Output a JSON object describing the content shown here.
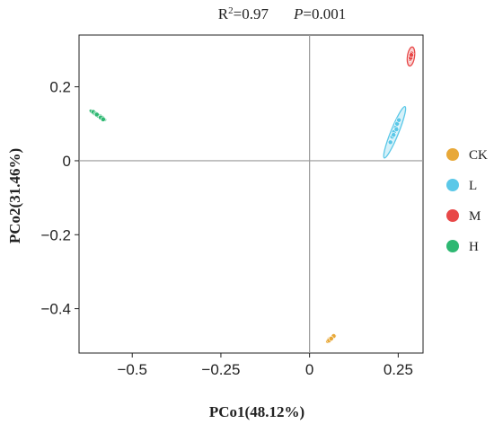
{
  "chart_data": {
    "type": "scatter",
    "stats": {
      "r2_label": "R",
      "r2_exp": "2",
      "r2_value": "=0.97",
      "p_label": "P",
      "p_value": "=0.001"
    },
    "xlabel": "PCo1(48.12%)",
    "ylabel": "PCo2(31.46%)",
    "xlim": [
      -0.65,
      0.32
    ],
    "ylim": [
      -0.52,
      0.34
    ],
    "xticks": [
      -0.5,
      -0.25,
      0,
      0.25
    ],
    "xtick_labels": [
      "−0.5",
      "−0.25",
      "0",
      "0.25"
    ],
    "yticks": [
      0.2,
      0,
      -0.2,
      -0.4
    ],
    "ytick_labels": [
      "0.2",
      "0",
      "−0.2",
      "−0.4"
    ],
    "reference_lines": {
      "x": 0,
      "y": 0
    },
    "grid": false,
    "legend_position": "right",
    "series": [
      {
        "name": "CK",
        "color": "#E8A838",
        "points": [
          [
            0.052,
            -0.488
          ],
          [
            0.058,
            -0.484
          ],
          [
            0.063,
            -0.479
          ],
          [
            0.068,
            -0.474
          ],
          [
            0.055,
            -0.486
          ],
          [
            0.061,
            -0.481
          ]
        ],
        "ellipse": {
          "cx": 0.06,
          "cy": -0.481,
          "rx": 0.016,
          "ry": 0.005,
          "angle_deg": 35
        }
      },
      {
        "name": "L",
        "color": "#5BC8E8",
        "points": [
          [
            0.228,
            0.05
          ],
          [
            0.233,
            0.065
          ],
          [
            0.238,
            0.078
          ],
          [
            0.243,
            0.09
          ],
          [
            0.247,
            0.1
          ],
          [
            0.252,
            0.11
          ],
          [
            0.237,
            0.07
          ],
          [
            0.245,
            0.085
          ]
        ],
        "ellipse": {
          "cx": 0.24,
          "cy": 0.077,
          "rx": 0.078,
          "ry": 0.011,
          "angle_deg": 68
        }
      },
      {
        "name": "M",
        "color": "#E84848",
        "points": [
          [
            0.284,
            0.275
          ],
          [
            0.286,
            0.282
          ],
          [
            0.288,
            0.29
          ],
          [
            0.285,
            0.278
          ],
          [
            0.287,
            0.286
          ]
        ],
        "ellipse": {
          "cx": 0.286,
          "cy": 0.282,
          "rx": 0.027,
          "ry": 0.01,
          "angle_deg": 82
        }
      },
      {
        "name": "H",
        "color": "#2EB872",
        "points": [
          [
            -0.61,
            0.132
          ],
          [
            -0.603,
            0.127
          ],
          [
            -0.596,
            0.122
          ],
          [
            -0.589,
            0.117
          ],
          [
            -0.582,
            0.112
          ],
          [
            -0.6,
            0.125
          ]
        ],
        "ellipse": {
          "cx": -0.597,
          "cy": 0.123,
          "rx": 0.026,
          "ry": 0.005,
          "angle_deg": -32
        }
      }
    ]
  }
}
